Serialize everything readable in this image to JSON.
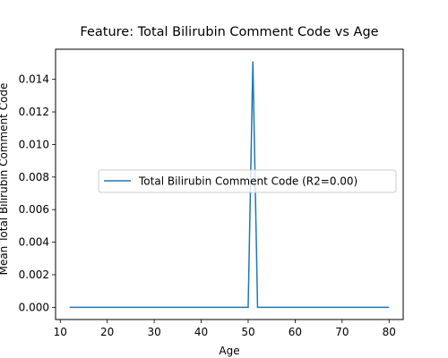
{
  "chart_data": {
    "type": "line",
    "title": "Feature: Total Bilirubin Comment Code vs Age",
    "xlabel": "Age",
    "ylabel": "Mean Total Bilirubin Comment Code",
    "xlim": [
      9,
      83
    ],
    "ylim": [
      -0.00075,
      0.01585
    ],
    "xticks": [
      10,
      20,
      30,
      40,
      50,
      60,
      70,
      80
    ],
    "yticks": [
      0.0,
      0.002,
      0.004,
      0.006,
      0.008,
      0.01,
      0.012,
      0.014
    ],
    "ytick_labels": [
      "0.000",
      "0.002",
      "0.004",
      "0.006",
      "0.008",
      "0.010",
      "0.012",
      "0.014"
    ],
    "grid": false,
    "legend_position": "center-right",
    "series": [
      {
        "name": "Total Bilirubin Comment Code (R2=0.00)",
        "color": "#1f77b4",
        "x": [
          12,
          50,
          51,
          52,
          80
        ],
        "y": [
          0.0,
          0.0,
          0.0151,
          0.0,
          0.0
        ]
      }
    ]
  }
}
